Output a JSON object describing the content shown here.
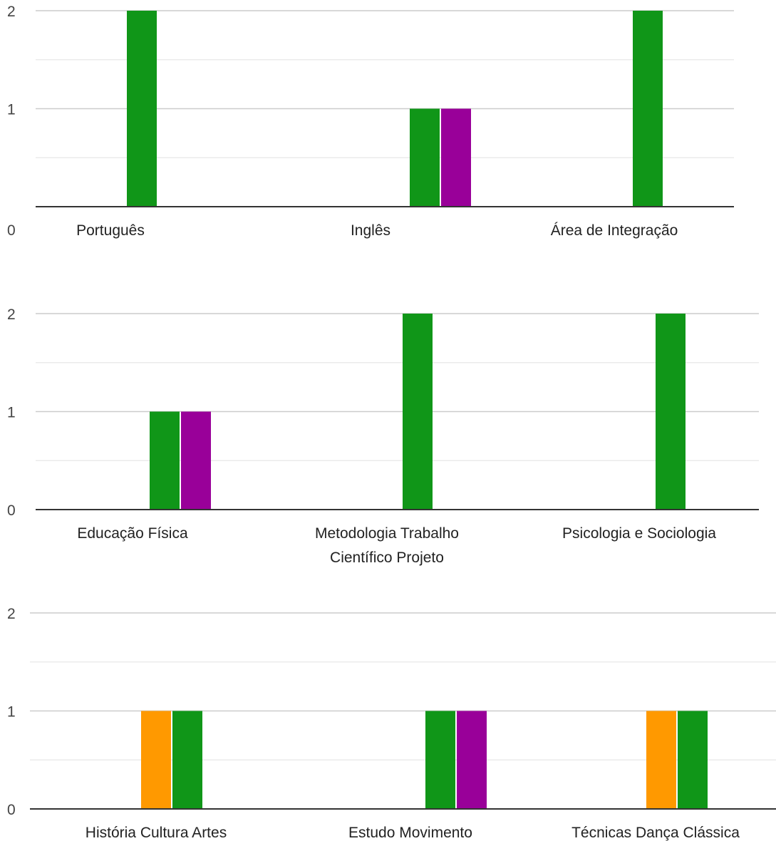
{
  "colors": {
    "orange": "#ff9900",
    "green": "#109618",
    "purple": "#990099",
    "gridline": "#cccccc",
    "minor_gridline": "#ebebeb",
    "baseline": "#333333",
    "label": "#222222",
    "tick": "#444444"
  },
  "chart_data": [
    {
      "type": "bar",
      "categories": [
        "Português",
        "Inglês",
        "Área de Integração"
      ],
      "series": [
        {
          "color": "#ff9900",
          "values": [
            0,
            0,
            0
          ]
        },
        {
          "color": "#109618",
          "values": [
            2,
            1,
            2
          ]
        },
        {
          "color": "#990099",
          "values": [
            0,
            1,
            0
          ]
        }
      ],
      "yticks": [
        "0",
        "1",
        "2"
      ],
      "ylim": [
        0,
        2
      ],
      "grid": true
    },
    {
      "type": "bar",
      "categories": [
        "Educação Física",
        "Metodologia Trabalho Científico Projeto",
        "Psicologia e Sociologia"
      ],
      "category_lines": [
        [
          "Educação Física"
        ],
        [
          "Metodologia Trabalho",
          "Científico Projeto"
        ],
        [
          "Psicologia e Sociologia"
        ]
      ],
      "series": [
        {
          "color": "#ff9900",
          "values": [
            0,
            0,
            0
          ]
        },
        {
          "color": "#109618",
          "values": [
            1,
            2,
            2
          ]
        },
        {
          "color": "#990099",
          "values": [
            1,
            0,
            0
          ]
        }
      ],
      "yticks": [
        "0",
        "1",
        "2"
      ],
      "ylim": [
        0,
        2
      ],
      "grid": true
    },
    {
      "type": "bar",
      "categories": [
        "História Cultura Artes",
        "Estudo Movimento",
        "Técnicas Dança Clássica"
      ],
      "series": [
        {
          "color": "#ff9900",
          "values": [
            1,
            0,
            1
          ]
        },
        {
          "color": "#109618",
          "values": [
            1,
            1,
            1
          ]
        },
        {
          "color": "#990099",
          "values": [
            0,
            1,
            0
          ]
        }
      ],
      "yticks": [
        "0",
        "1",
        "2"
      ],
      "ylim": [
        0,
        2
      ],
      "grid": true
    }
  ]
}
